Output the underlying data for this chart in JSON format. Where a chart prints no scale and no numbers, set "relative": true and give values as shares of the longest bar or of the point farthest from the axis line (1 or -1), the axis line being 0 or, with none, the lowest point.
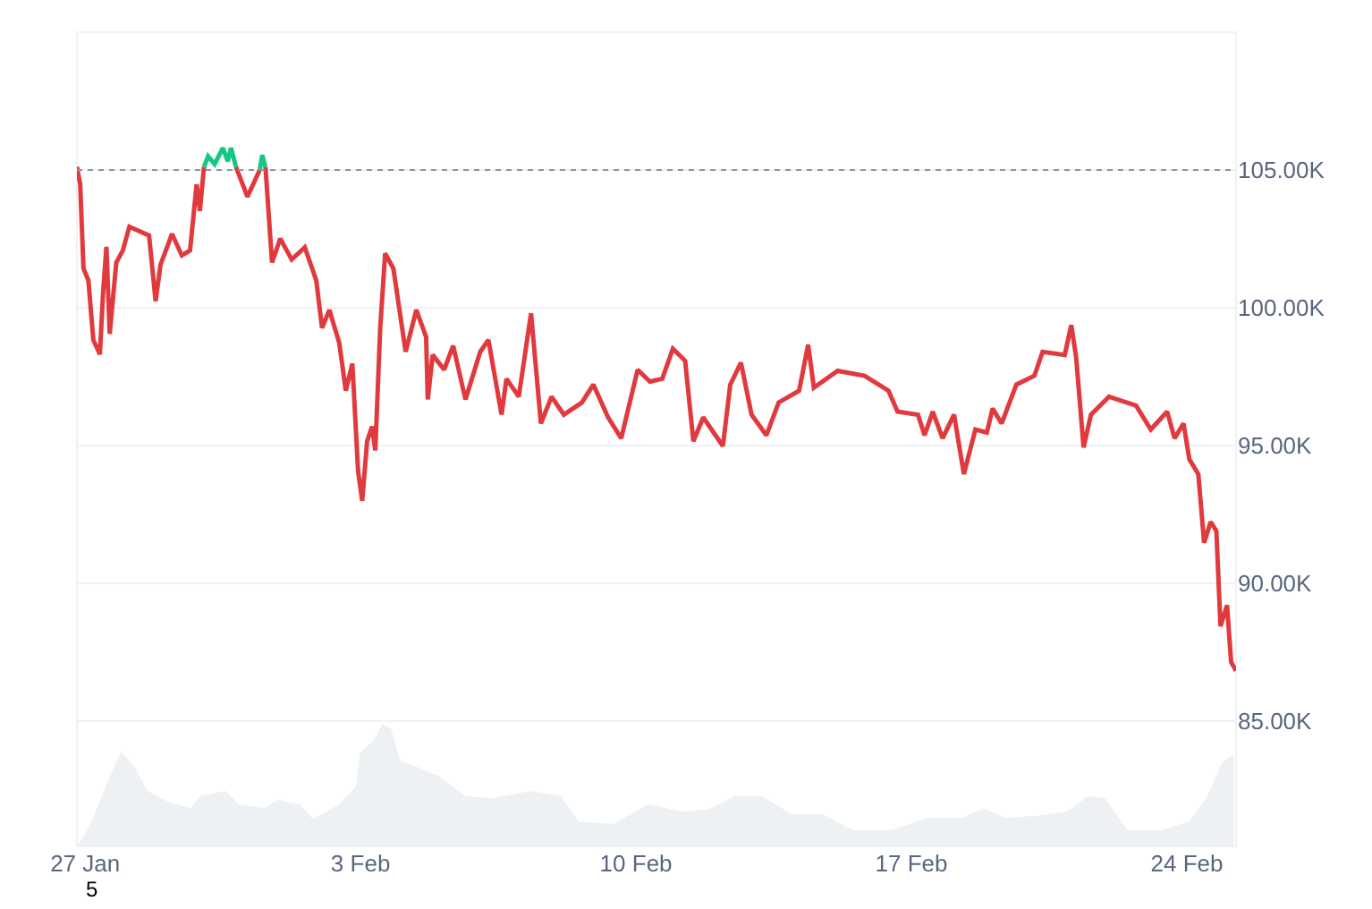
{
  "chart_data": [
    {
      "type": "line",
      "x": [
        "--01-26T19:00",
        "--01-26T21:00",
        "--01-26T23:00",
        "--01-27T02:00",
        "--01-27T05:00",
        "--01-27T09:00",
        "--01-27T11:00",
        "--01-27T13:00",
        "--01-27T15:00",
        "--01-27T19:00",
        "--01-27T23:00",
        "--01-28T03:00",
        "--01-28T15:00",
        "--01-28T19:00",
        "--01-28T22:00",
        "--01-29T05:00",
        "--01-29T11:00",
        "--01-29T16:00",
        "--01-29T20:00",
        "--01-29T22:00",
        "--01-30T00:30",
        "--01-30T03:00",
        "--01-30T07:00",
        "--01-30T12:00",
        "--01-30T15:00",
        "--01-30T17:00",
        "--01-30T20:00",
        "--01-31T03:00",
        "--01-31T10:30",
        "--01-31T12:00",
        "--01-31T14:00",
        "--01-31T18:00",
        "--01-31T23:00",
        "--02-01T06:00",
        "--02-01T14:00",
        "--02-01T21:00",
        "--02-02T00:30",
        "--02-02T05:00",
        "--02-02T11:00",
        "--02-02T15:00",
        "--02-02T19:00",
        "--02-02T22:30",
        "--02-03T01:00",
        "--02-03T04:00",
        "--02-03T07:00",
        "--02-03T09:00",
        "--02-03T12:00",
        "--02-03T15:00",
        "--02-03T20:00",
        "--02-04T03:30",
        "--02-04T10:00",
        "--02-04T16:00",
        "--02-04T17:00",
        "--02-04T20:00",
        "--02-05T03:00",
        "--02-05T08:30",
        "--02-05T16:00",
        "--02-06T01:00",
        "--02-06T06:00",
        "--02-06T14:00",
        "--02-06T17:00",
        "--02-07T00:30",
        "--02-07T08:00",
        "--02-07T14:00",
        "--02-07T20:30",
        "--02-08T04:00",
        "--02-08T15:00",
        "--02-08T22:00",
        "--02-09T07:00",
        "--02-09T15:00",
        "--02-10T01:00",
        "--02-10T08:30",
        "--02-10T16:00",
        "--02-10T22:30",
        "--02-11T06:00",
        "--02-11T11:00",
        "--02-11T17:00",
        "--02-12T05:00",
        "--02-12T09:30",
        "--02-12T16:00",
        "--02-12T22:30",
        "--02-13T07:30",
        "--02-13T15:00",
        "--02-14T03:30",
        "--02-14T09:00",
        "--02-14T12:30",
        "--02-15T03:00",
        "--02-15T19:30",
        "--02-16T10:00",
        "--02-16T15:30",
        "--02-17T04:00",
        "--02-17T08:00",
        "--02-17T13:00",
        "--02-17T19:00",
        "--02-18T02:00",
        "--02-18T08:00",
        "--02-18T15:00",
        "--02-18T22:00",
        "--02-19T01:30",
        "--02-19T07:00",
        "--02-19T16:00",
        "--02-20T03:00",
        "--02-20T08:00",
        "--02-20T21:30",
        "--02-21T01:30",
        "--02-21T04:30",
        "--02-21T09:00",
        "--02-21T13:30",
        "--02-22T00:30",
        "--02-22T17:00",
        "--02-23T02:00",
        "--02-23T12:00",
        "--02-23T16:30",
        "--02-23T22:00",
        "--02-24T01:30",
        "--02-24T07:00",
        "--02-24T10:30",
        "--02-24T14:30",
        "--02-24T18:00",
        "--02-24T20:30",
        "--02-25T00:30",
        "--02-25T03:00",
        "--02-25T06:00"
      ],
      "series": [
        {
          "color": "#e03a3e",
          "values": [
            105110,
            104480,
            101430,
            100990,
            98830,
            98310,
            100580,
            102210,
            99050,
            101640,
            102080,
            102940,
            102620,
            100240,
            101560,
            102680,
            101900,
            102080,
            104480,
            103510,
            105110,
            null,
            null,
            null,
            null,
            null,
            105110,
            104030,
            105000,
            null,
            105110,
            101640,
            102510,
            101750,
            102190,
            100990,
            99270,
            99920,
            98720,
            96990,
            97970,
            94070,
            92990,
            95150,
            95690,
            94820,
            99270,
            101970,
            101430,
            98400,
            99920,
            98940,
            96670,
            98290,
            97750,
            98620,
            96670,
            98400,
            98830,
            96120,
            97420,
            96770,
            99800,
            95800,
            96770,
            96120,
            96560,
            97210,
            96020,
            95260,
            97750,
            97320,
            97420,
            98510,
            98070,
            95150,
            96020,
            94980,
            97210,
            98010,
            96120,
            95370,
            96560,
            96990,
            98660,
            97100,
            97710,
            97530,
            96990,
            96230,
            96120,
            95370,
            96230,
            95260,
            96120,
            93960,
            95580,
            95470,
            96340,
            95800,
            97210,
            97530,
            98400,
            98290,
            99370,
            98180,
            94930,
            96120,
            96770,
            96450,
            95580,
            96230,
            95260,
            95800,
            94500,
            93960,
            91470,
            92230,
            91900,
            88440,
            89200,
            87140,
            86820
          ]
        },
        {
          "color": "#16c784",
          "values": [
            null,
            null,
            null,
            null,
            null,
            null,
            null,
            null,
            null,
            null,
            null,
            null,
            null,
            null,
            null,
            null,
            null,
            null,
            null,
            null,
            105110,
            105500,
            105210,
            105800,
            105320,
            105800,
            105110,
            null,
            105000,
            105540,
            105110,
            null,
            null,
            null,
            null,
            null,
            null,
            null,
            null,
            null,
            null,
            null,
            null,
            null,
            null,
            null,
            null,
            null,
            null,
            null,
            null,
            null,
            null,
            null,
            null,
            null,
            null,
            null,
            null,
            null,
            null,
            null,
            null,
            null,
            null,
            null,
            null,
            null,
            null,
            null,
            null,
            null,
            null,
            null,
            null,
            null,
            null,
            null,
            null,
            null,
            null,
            null,
            null,
            null,
            null,
            null,
            null,
            null,
            null,
            null,
            null,
            null,
            null,
            null,
            null,
            null,
            null,
            null,
            null,
            null,
            null,
            null,
            null,
            null,
            null,
            null,
            null,
            null,
            null,
            null,
            null,
            null,
            null,
            null,
            null,
            null,
            null,
            null,
            null,
            null,
            null,
            null,
            null
          ]
        }
      ],
      "line_style": "solid",
      "xlim": [
        "--01-26T19:00",
        "--02-25T06:00"
      ],
      "xticks": [
        {
          "value": "--01-27",
          "label": "27 Jan"
        },
        {
          "value": "--02-03",
          "label": "3 Feb"
        },
        {
          "value": "--02-10",
          "label": "10 Feb"
        },
        {
          "value": "--02-17",
          "label": "17 Feb"
        },
        {
          "value": "--02-24",
          "label": "24 Feb"
        }
      ],
      "ylim": [
        80450,
        110000
      ],
      "yticks": [
        {
          "value": 85000,
          "label": "85.00K"
        },
        {
          "value": 90000,
          "label": "90.00K"
        },
        {
          "value": 95000,
          "label": "95.00K"
        },
        {
          "value": 100000,
          "label": "100.00K"
        },
        {
          "value": 105000,
          "label": "105.00K"
        }
      ],
      "ref_lines": [
        {
          "axis": "y",
          "value": 105000,
          "color": "#8a94a6",
          "line_style": "dotted"
        }
      ],
      "grid": "y",
      "legend": false,
      "annotations": [
        "5"
      ]
    },
    {
      "type": "area",
      "relative": true,
      "tick_labels": false,
      "color": "#eef1f4",
      "x": [
        "--01-26T19:30",
        "--01-27T03:30",
        "--01-27T14:00",
        "--01-27T22:00",
        "--01-28T06:00",
        "--01-28T14:00",
        "--01-29T03:00",
        "--01-29T16:30",
        "--01-29T22:00",
        "--01-30T14:00",
        "--01-30T21:30",
        "--01-31T13:30",
        "--01-31T21:30",
        "--02-01T11:00",
        "--02-01T19:00",
        "--02-02T11:00",
        "--02-02T21:30",
        "--02-03T00:00",
        "--02-03T08:00",
        "--02-03T13:30",
        "--02-03T18:30",
        "--02-04T00:00",
        "--02-04T13:30",
        "--02-05T00:00",
        "--02-05T16:00",
        "--02-06T08:00",
        "--02-07T08:00",
        "--02-08T02:00",
        "--02-08T13:00",
        "--02-09T10:00",
        "--02-10T07:30",
        "--02-11T05:00",
        "--02-11T20:30",
        "--02-12T12:30",
        "--02-13T04:30",
        "--02-13T23:00",
        "--02-14T18:00",
        "--02-15T12:00",
        "--02-16T12:00",
        "--02-17T09:30",
        "--02-18T07:00",
        "--02-18T20:00",
        "--02-19T09:00",
        "--02-20T06:30",
        "--02-20T22:30",
        "--02-21T12:00",
        "--02-21T22:00",
        "--02-22T11:30",
        "--02-23T09:00",
        "--02-24T01:00",
        "--02-24T11:30",
        "--02-24T22:00",
        "--02-25T04:30"
      ],
      "values": [
        0,
        0.18,
        0.53,
        0.77,
        0.65,
        0.45,
        0.36,
        0.31,
        0.41,
        0.45,
        0.34,
        0.31,
        0.38,
        0.34,
        0.22,
        0.34,
        0.49,
        0.77,
        0.86,
        1,
        0.96,
        0.7,
        0.63,
        0.57,
        0.41,
        0.39,
        0.45,
        0.41,
        0.2,
        0.18,
        0.34,
        0.28,
        0.3,
        0.41,
        0.41,
        0.26,
        0.26,
        0.13,
        0.13,
        0.23,
        0.23,
        0.31,
        0.23,
        0.25,
        0.28,
        0.41,
        0.39,
        0.13,
        0.13,
        0.2,
        0.38,
        0.69,
        0.75
      ],
      "xlim": [
        "--01-26T19:00",
        "--02-25T06:00"
      ]
    }
  ]
}
